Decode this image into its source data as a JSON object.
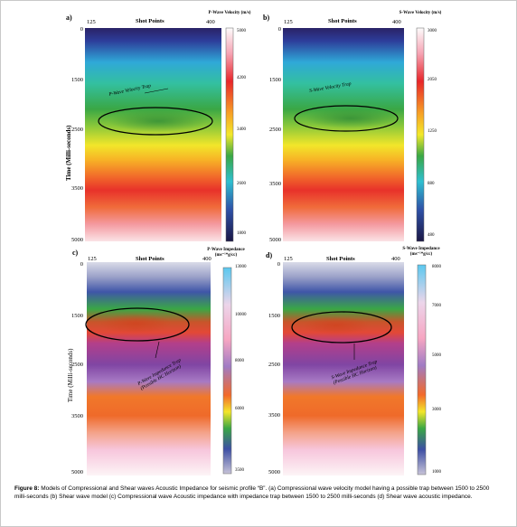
{
  "panels": [
    {
      "letter": "a)",
      "x_start": "125",
      "x_title": "Shot Points",
      "x_end": "400",
      "cb_title": "P-Wave Velocity (m/s)",
      "cb_ticks": [
        "5000",
        "4200",
        "3400",
        "2600",
        "1800"
      ],
      "annotation": "P-Wave Velocity Trap",
      "y_ticks": [
        "0",
        "1500",
        "2500",
        "3500",
        "5000"
      ],
      "ylabel": "Time (Milli-seconds)"
    },
    {
      "letter": "b)",
      "x_start": "125",
      "x_title": "Shot Points",
      "x_end": "400",
      "cb_title": "S-Wave Velocity (m/s)",
      "cb_ticks": [
        "3000",
        "2050",
        "1250",
        "880",
        "480"
      ],
      "annotation": "S-Wave Velocity Trap",
      "y_ticks": [
        "0",
        "1500",
        "2500",
        "3500",
        "5000"
      ],
      "ylabel": ""
    },
    {
      "letter": "c)",
      "x_start": "125",
      "x_title": "Shot Points",
      "x_end": "400",
      "cb_title": "P-Wave Impedance (ms⁻¹*g/cc)",
      "cb_ticks": [
        "13000",
        "10000",
        "8000",
        "6000",
        "3500"
      ],
      "annotation": "P-Wave Impedance Trap (Possible HC Horizon)",
      "y_ticks": [
        "0",
        "1500",
        "2500",
        "3500",
        "5000"
      ],
      "ylabel": "Time (Milli-seconds)"
    },
    {
      "letter": "d)",
      "x_start": "125",
      "x_title": "Shot Points",
      "x_end": "400",
      "cb_title": "S-Wave Impedance (ms⁻¹*g/cc)",
      "cb_ticks": [
        "8000",
        "7000",
        "5000",
        "3000",
        "1000"
      ],
      "annotation": "S-Wave Impedance Trap (Possible HC Horizon)",
      "y_ticks": [
        "0",
        "1500",
        "2500",
        "3500",
        "5000"
      ],
      "ylabel": ""
    }
  ],
  "caption": {
    "label": "Figure 8:",
    "text": " Models of Compressional and Shear waves Acoustic Impedance for seismic profile “B”. (a) Compressional wave velocity model having a possible trap between 1500 to 2500 milli-seconds (b) Shear wave model (c) Compressional wave Acoustic impedance with impedance trap between 1500 to 2500 milli-seconds (d) Shear wave acoustic impedance."
  }
}
